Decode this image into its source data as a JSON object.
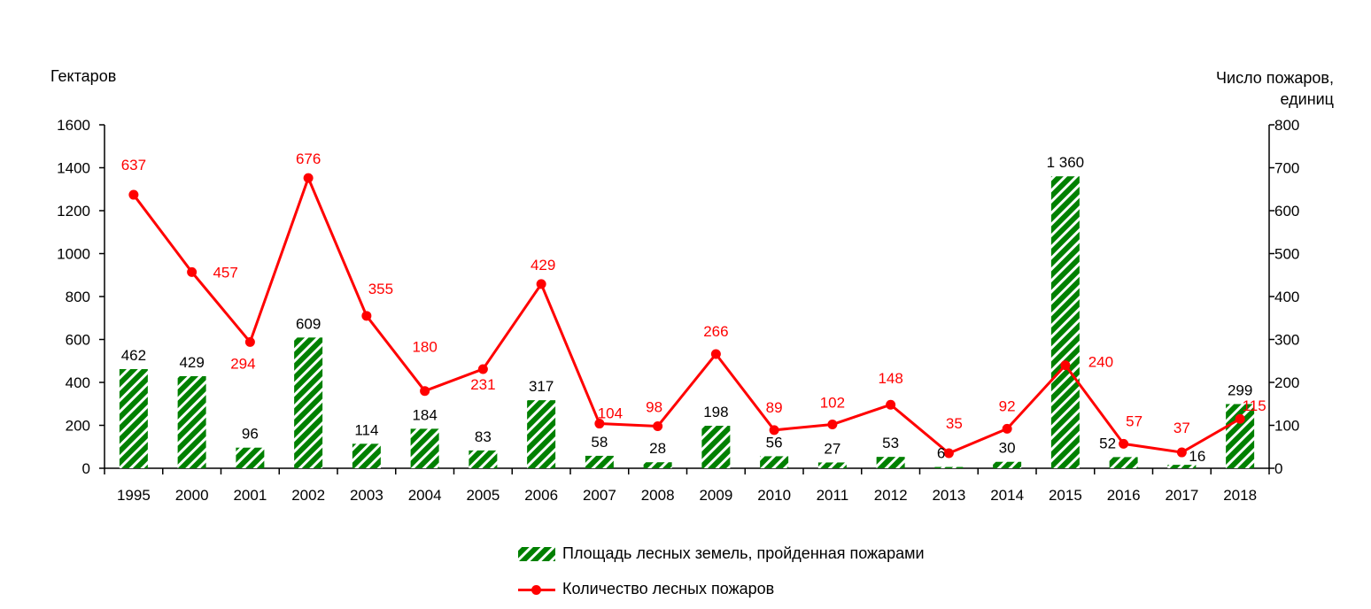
{
  "colors": {
    "bar": "#008000",
    "bar_stripe": "#ffffff",
    "line": "#ff0000",
    "axis": "#000000"
  },
  "chart_data": {
    "type": "bar+line",
    "categories": [
      "1995",
      "2000",
      "2001",
      "2002",
      "2003",
      "2004",
      "2005",
      "2006",
      "2007",
      "2008",
      "2009",
      "2010",
      "2011",
      "2012",
      "2013",
      "2014",
      "2015",
      "2016",
      "2017",
      "2018"
    ],
    "y_left": {
      "label": "Гектаров",
      "ylim": [
        0,
        1600
      ],
      "ticks": [
        0,
        200,
        400,
        600,
        800,
        1000,
        1200,
        1400,
        1600
      ]
    },
    "y_right": {
      "label": "Число пожаров, единиц",
      "ylim": [
        0,
        800
      ],
      "ticks": [
        0,
        100,
        200,
        300,
        400,
        500,
        600,
        700,
        800
      ]
    },
    "series": [
      {
        "name": "Площадь лесных земель, пройденная пожарами",
        "kind": "bar",
        "axis": "left",
        "values": [
          462,
          429,
          96,
          609,
          114,
          184,
          83,
          317,
          58,
          28,
          198,
          56,
          27,
          53,
          6,
          30,
          1360,
          52,
          16,
          299
        ],
        "labels": [
          "462",
          "429",
          "96",
          "609",
          "114",
          "184",
          "83",
          "317",
          "58",
          "28",
          "198",
          "56",
          "27",
          "53",
          "6",
          "30",
          "1 360",
          "52",
          "16",
          "299"
        ]
      },
      {
        "name": "Количество лесных пожаров",
        "kind": "line",
        "axis": "right",
        "values": [
          637,
          457,
          294,
          676,
          355,
          180,
          231,
          429,
          104,
          98,
          266,
          89,
          102,
          148,
          35,
          92,
          240,
          57,
          37,
          115
        ],
        "labels": [
          "637",
          "457",
          "294",
          "676",
          "355",
          "180",
          "231",
          "429",
          "104",
          "98",
          "266",
          "89",
          "102",
          "148",
          "35",
          "92",
          "240",
          "57",
          "37",
          "115"
        ]
      }
    ],
    "legend": [
      "Площадь лесных земель, пройденная пожарами",
      "Количество лесных пожаров"
    ],
    "legend_position": "bottom-center",
    "grid": false
  }
}
